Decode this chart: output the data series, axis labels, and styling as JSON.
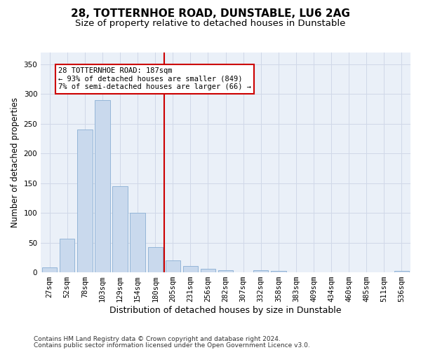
{
  "title1": "28, TOTTERNHOE ROAD, DUNSTABLE, LU6 2AG",
  "title2": "Size of property relative to detached houses in Dunstable",
  "xlabel": "Distribution of detached houses by size in Dunstable",
  "ylabel": "Number of detached properties",
  "bar_labels": [
    "27sqm",
    "52sqm",
    "78sqm",
    "103sqm",
    "129sqm",
    "154sqm",
    "180sqm",
    "205sqm",
    "231sqm",
    "256sqm",
    "282sqm",
    "307sqm",
    "332sqm",
    "358sqm",
    "383sqm",
    "409sqm",
    "434sqm",
    "460sqm",
    "485sqm",
    "511sqm",
    "536sqm"
  ],
  "bar_values": [
    8,
    57,
    240,
    290,
    145,
    100,
    42,
    20,
    11,
    6,
    4,
    0,
    4,
    3,
    0,
    0,
    0,
    0,
    0,
    0,
    3
  ],
  "bar_color": "#c9d9ed",
  "bar_edge_color": "#8aafd4",
  "vline_x": 6.5,
  "vline_color": "#cc0000",
  "annotation_text": "28 TOTTERNHOE ROAD: 187sqm\n← 93% of detached houses are smaller (849)\n7% of semi-detached houses are larger (66) →",
  "annotation_box_color": "#ffffff",
  "annotation_box_edge": "#cc0000",
  "ylim": [
    0,
    370
  ],
  "yticks": [
    0,
    50,
    100,
    150,
    200,
    250,
    300,
    350
  ],
  "grid_color": "#d0d8e8",
  "bg_color": "#eaf0f8",
  "footer1": "Contains HM Land Registry data © Crown copyright and database right 2024.",
  "footer2": "Contains public sector information licensed under the Open Government Licence v3.0.",
  "title1_fontsize": 11,
  "title2_fontsize": 9.5,
  "xlabel_fontsize": 9,
  "ylabel_fontsize": 8.5,
  "tick_fontsize": 7.5,
  "footer_fontsize": 6.5
}
